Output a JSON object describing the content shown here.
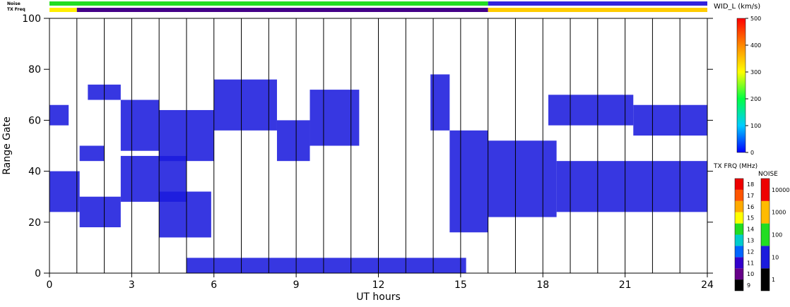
{
  "chart_data": {
    "type": "heatmap",
    "title": "",
    "xlabel": "UT hours",
    "ylabel": "Range Gate",
    "xlim": [
      0,
      24
    ],
    "ylim": [
      0,
      100
    ],
    "x_ticks": [
      "0",
      "3",
      "6",
      "9",
      "12",
      "15",
      "18",
      "21",
      "24"
    ],
    "y_ticks": [
      "0",
      "20",
      "40",
      "60",
      "80",
      "100"
    ],
    "vertical_gridlines_at_hours": [
      1,
      2,
      3,
      4,
      5,
      6,
      7,
      8,
      9,
      10,
      11,
      12,
      13,
      14,
      15,
      16,
      17,
      18,
      19,
      20,
      21,
      22,
      23
    ],
    "top_bars": {
      "noise_label": "Noise",
      "txfreq_label": "TX Freq",
      "noise_segments": [
        {
          "from": 0,
          "to": 16,
          "color": "#22dd22"
        },
        {
          "from": 16,
          "to": 24,
          "color": "#3322dd"
        }
      ],
      "txfreq_segments": [
        {
          "from": 0,
          "to": 1,
          "color": "#ffee00"
        },
        {
          "from": 1,
          "to": 16,
          "color": "#440088"
        },
        {
          "from": 16,
          "to": 24,
          "color": "#ffcc00"
        }
      ]
    },
    "series": [
      {
        "x_from": 0,
        "x_to": 1.1,
        "y_from": 24,
        "y_to": 40,
        "color": "#1b1bdd"
      },
      {
        "x_from": 0,
        "x_to": 0.7,
        "y_from": 58,
        "y_to": 66,
        "color": "#1b1bdd"
      },
      {
        "x_from": 1.1,
        "x_to": 2.6,
        "y_from": 18,
        "y_to": 30,
        "color": "#1b1bdd"
      },
      {
        "x_from": 1.1,
        "x_to": 2.0,
        "y_from": 44,
        "y_to": 50,
        "color": "#1b1bdd"
      },
      {
        "x_from": 1.4,
        "x_to": 2.6,
        "y_from": 68,
        "y_to": 74,
        "color": "#1b1bdd"
      },
      {
        "x_from": 2.6,
        "x_to": 5.0,
        "y_from": 28,
        "y_to": 46,
        "color": "#1b1bdd"
      },
      {
        "x_from": 2.6,
        "x_to": 4.0,
        "y_from": 48,
        "y_to": 68,
        "color": "#1b1bdd"
      },
      {
        "x_from": 4.0,
        "x_to": 6.0,
        "y_from": 44,
        "y_to": 64,
        "color": "#1b1bdd"
      },
      {
        "x_from": 4.0,
        "x_to": 5.9,
        "y_from": 14,
        "y_to": 32,
        "color": "#1b1bdd"
      },
      {
        "x_from": 6.0,
        "x_to": 8.3,
        "y_from": 56,
        "y_to": 76,
        "color": "#1b1bdd"
      },
      {
        "x_from": 8.3,
        "x_to": 9.5,
        "y_from": 44,
        "y_to": 60,
        "color": "#1b1bdd"
      },
      {
        "x_from": 9.5,
        "x_to": 11.3,
        "y_from": 50,
        "y_to": 72,
        "color": "#1b1bdd"
      },
      {
        "x_from": 13.9,
        "x_to": 14.6,
        "y_from": 56,
        "y_to": 78,
        "color": "#1b1bdd"
      },
      {
        "x_from": 14.6,
        "x_to": 16.0,
        "y_from": 16,
        "y_to": 56,
        "color": "#1b1bdd"
      },
      {
        "x_from": 16.0,
        "x_to": 18.5,
        "y_from": 22,
        "y_to": 52,
        "color": "#1b1bdd"
      },
      {
        "x_from": 18.5,
        "x_to": 24.0,
        "y_from": 24,
        "y_to": 44,
        "color": "#1b1bdd"
      },
      {
        "x_from": 18.2,
        "x_to": 21.3,
        "y_from": 58,
        "y_to": 70,
        "color": "#1b1bdd"
      },
      {
        "x_from": 21.3,
        "x_to": 24.0,
        "y_from": 54,
        "y_to": 66,
        "color": "#1b1bdd"
      },
      {
        "x_from": 5.0,
        "x_to": 15.2,
        "y_from": 0,
        "y_to": 6,
        "color": "#1b1bdd"
      }
    ],
    "colorbars": [
      {
        "title": "WID_L (km/s)",
        "range": [
          0,
          500
        ],
        "tick_labels": [
          "0",
          "100",
          "200",
          "300",
          "400",
          "500"
        ],
        "stops": [
          "#0000ff",
          "#00ccff",
          "#00ff44",
          "#ffff00",
          "#ff8800",
          "#ff0000"
        ]
      },
      {
        "title": "TX FRQ (MHz)",
        "tick_labels": [
          "9",
          "10",
          "11",
          "12",
          "13",
          "14",
          "15",
          "16",
          "17",
          "18"
        ],
        "colors": [
          "#000000",
          "#660088",
          "#3300cc",
          "#0066ff",
          "#00cccc",
          "#22dd22",
          "#ffff00",
          "#ffaa00",
          "#ff5500",
          "#ee0000"
        ]
      },
      {
        "title": "NOISE",
        "tick_labels": [
          "1",
          "10",
          "100",
          "1000",
          "10000"
        ],
        "colors": [
          "#000000",
          "#1b1bdd",
          "#22dd22",
          "#ffbb00",
          "#ee0000"
        ]
      }
    ]
  }
}
